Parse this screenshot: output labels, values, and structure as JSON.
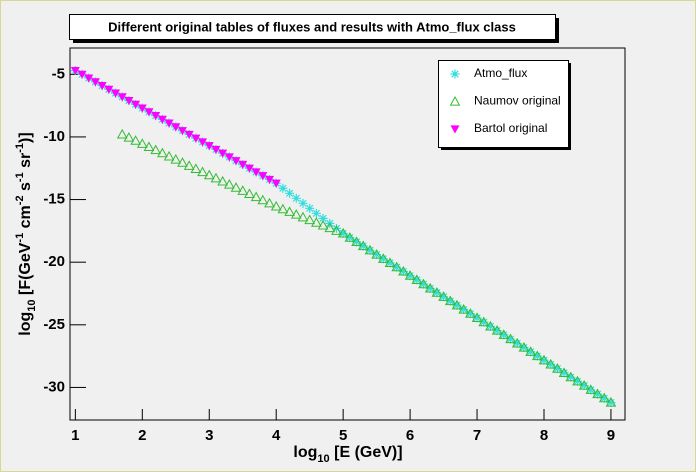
{
  "chart_data": {
    "type": "scatter",
    "title": "Different original tables of fluxes and results with Atmo_flux class",
    "x_label": [
      "log",
      "10",
      " [E (GeV)]"
    ],
    "y_label": [
      "log",
      "10",
      " [F(GeV",
      "-1",
      " cm",
      "-2",
      " s",
      "-1",
      " sr",
      "-1",
      ")]"
    ],
    "xlim": [
      0.92,
      9.21
    ],
    "ylim": [
      -32.6,
      -2.9
    ],
    "xticks": [
      1,
      2,
      3,
      4,
      5,
      6,
      7,
      8,
      9
    ],
    "yticks": [
      -30,
      -25,
      -20,
      -15,
      -10,
      -5
    ],
    "legend": "top-right",
    "series": [
      {
        "name": "Atmo_flux",
        "color": "#33dddd",
        "marker": "asterisk",
        "x": [
          1.0,
          1.1,
          1.2,
          1.3,
          1.4,
          1.5,
          1.6,
          1.7,
          1.8,
          1.9,
          2.0,
          2.1,
          2.2,
          2.3,
          2.4,
          2.5,
          2.6,
          2.7,
          2.8,
          2.9,
          3.0,
          3.1,
          3.2,
          3.3,
          3.4,
          3.5,
          3.6,
          3.7,
          3.8,
          3.9,
          4.0,
          4.1,
          4.2,
          4.3,
          4.4,
          4.5,
          4.6,
          4.7,
          4.8,
          4.9,
          5.0,
          5.1,
          5.2,
          5.3,
          5.4,
          5.5,
          5.6,
          5.7,
          5.8,
          5.9,
          6.0,
          6.1,
          6.2,
          6.3,
          6.4,
          6.5,
          6.6,
          6.7,
          6.8,
          6.9,
          7.0,
          7.1,
          7.2,
          7.3,
          7.4,
          7.5,
          7.6,
          7.7,
          7.8,
          7.9,
          8.0,
          8.1,
          8.2,
          8.3,
          8.4,
          8.5,
          8.6,
          8.7,
          8.8,
          8.9,
          9.0
        ],
        "values": [
          -4.7,
          -5.0,
          -5.3,
          -5.6,
          -5.9,
          -6.2,
          -6.5,
          -6.8,
          -7.1,
          -7.4,
          -7.7,
          -8.0,
          -8.3,
          -8.6,
          -8.9,
          -9.2,
          -9.5,
          -9.8,
          -10.1,
          -10.4,
          -10.7,
          -11.0,
          -11.3,
          -11.6,
          -11.9,
          -12.2,
          -12.5,
          -12.8,
          -13.1,
          -13.4,
          -13.7,
          -14.1,
          -14.5,
          -14.9,
          -15.3,
          -15.7,
          -16.1,
          -16.5,
          -16.9,
          -17.3,
          -17.7,
          -18.04,
          -18.38,
          -18.71,
          -19.05,
          -19.39,
          -19.73,
          -20.06,
          -20.4,
          -20.74,
          -21.08,
          -21.41,
          -21.75,
          -22.09,
          -22.43,
          -22.76,
          -23.1,
          -23.44,
          -23.78,
          -24.11,
          -24.45,
          -24.79,
          -25.13,
          -25.46,
          -25.8,
          -26.14,
          -26.48,
          -26.81,
          -27.15,
          -27.49,
          -27.83,
          -28.16,
          -28.5,
          -28.84,
          -29.18,
          -29.51,
          -29.85,
          -30.19,
          -30.53,
          -30.86,
          -31.2
        ]
      },
      {
        "name": "Naumov original",
        "color": "#33bb33",
        "marker": "open-triangle",
        "x": [
          1.7,
          1.8,
          1.9,
          2.0,
          2.1,
          2.2,
          2.3,
          2.4,
          2.5,
          2.6,
          2.7,
          2.8,
          2.9,
          3.0,
          3.1,
          3.2,
          3.3,
          3.4,
          3.5,
          3.6,
          3.7,
          3.8,
          3.9,
          4.0,
          4.1,
          4.2,
          4.3,
          4.4,
          4.5,
          4.6,
          4.7,
          4.8,
          4.9,
          5.0,
          5.1,
          5.2,
          5.3,
          5.4,
          5.5,
          5.6,
          5.7,
          5.8,
          5.9,
          6.0,
          6.1,
          6.2,
          6.3,
          6.4,
          6.5,
          6.6,
          6.7,
          6.8,
          6.9,
          7.0,
          7.1,
          7.2,
          7.3,
          7.4,
          7.5,
          7.6,
          7.7,
          7.8,
          7.9,
          8.0,
          8.1,
          8.2,
          8.3,
          8.4,
          8.5,
          8.6,
          8.7,
          8.8,
          8.9,
          9.0
        ],
        "values": [
          -9.8,
          -10.05,
          -10.3,
          -10.55,
          -10.8,
          -11.05,
          -11.3,
          -11.55,
          -11.8,
          -12.05,
          -12.3,
          -12.55,
          -12.8,
          -13.05,
          -13.3,
          -13.55,
          -13.8,
          -14.05,
          -14.3,
          -14.55,
          -14.8,
          -15.05,
          -15.3,
          -15.55,
          -15.77,
          -15.98,
          -16.2,
          -16.41,
          -16.63,
          -16.84,
          -17.06,
          -17.27,
          -17.49,
          -17.7,
          -18.04,
          -18.38,
          -18.71,
          -19.05,
          -19.39,
          -19.73,
          -20.06,
          -20.4,
          -20.74,
          -21.08,
          -21.41,
          -21.75,
          -22.09,
          -22.43,
          -22.76,
          -23.1,
          -23.44,
          -23.78,
          -24.11,
          -24.45,
          -24.79,
          -25.13,
          -25.46,
          -25.8,
          -26.14,
          -26.48,
          -26.81,
          -27.15,
          -27.49,
          -27.83,
          -28.16,
          -28.5,
          -28.84,
          -29.18,
          -29.51,
          -29.85,
          -30.19,
          -30.53,
          -30.86,
          -31.2
        ]
      },
      {
        "name": "Bartol original",
        "color": "#ff00ff",
        "marker": "down-triangle",
        "x": [
          1.0,
          1.1,
          1.2,
          1.3,
          1.4,
          1.5,
          1.6,
          1.7,
          1.8,
          1.9,
          2.0,
          2.1,
          2.2,
          2.3,
          2.4,
          2.5,
          2.6,
          2.7,
          2.8,
          2.9,
          3.0,
          3.1,
          3.2,
          3.3,
          3.4,
          3.5,
          3.6,
          3.7,
          3.8,
          3.9,
          4.0
        ],
        "values": [
          -4.7,
          -5.0,
          -5.3,
          -5.6,
          -5.9,
          -6.2,
          -6.5,
          -6.8,
          -7.1,
          -7.4,
          -7.7,
          -8.0,
          -8.3,
          -8.6,
          -8.9,
          -9.2,
          -9.5,
          -9.8,
          -10.1,
          -10.4,
          -10.7,
          -11.0,
          -11.3,
          -11.6,
          -11.9,
          -12.2,
          -12.5,
          -12.8,
          -13.1,
          -13.4,
          -13.7
        ]
      }
    ]
  }
}
